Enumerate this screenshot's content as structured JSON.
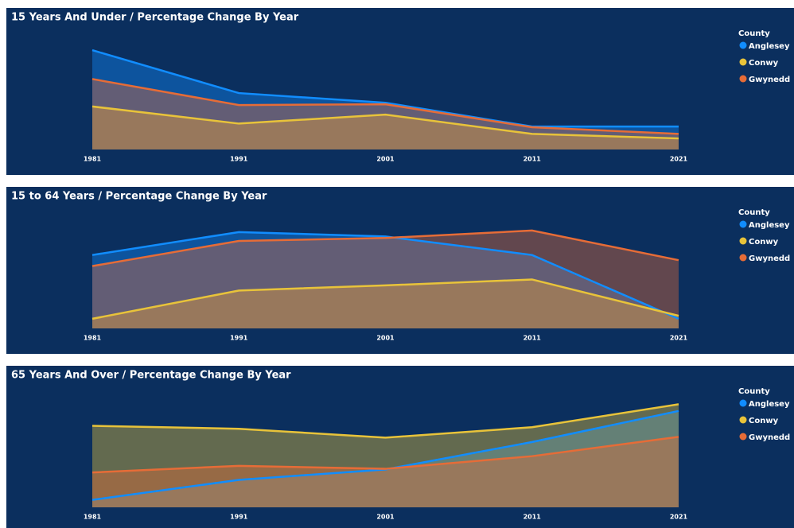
{
  "chart_data": [
    {
      "type": "area",
      "title": "15 Years And Under / Percentage Change By Year",
      "legend_title": "County",
      "categories": [
        "1981",
        "1991",
        "2001",
        "2011",
        "2021"
      ],
      "ylim": [
        0,
        100
      ],
      "series": [
        {
          "name": "Anglesey",
          "color": "#118dff",
          "values": [
            90.5,
            51.4,
            42.6,
            20.9,
            20.9
          ]
        },
        {
          "name": "Conwy",
          "color": "#e8c33a",
          "values": [
            39.2,
            23.6,
            31.8,
            14.2,
            10.1
          ]
        },
        {
          "name": "Gwynedd",
          "color": "#e66c37",
          "values": [
            64.2,
            40.5,
            41.2,
            20.3,
            14.2
          ]
        }
      ]
    },
    {
      "type": "area",
      "title": "15 to 64 Years / Percentage Change By Year",
      "legend_title": "County",
      "categories": [
        "1981",
        "1991",
        "2001",
        "2011",
        "2021"
      ],
      "ylim": [
        0,
        100
      ],
      "series": [
        {
          "name": "Anglesey",
          "color": "#118dff",
          "values": [
            66.9,
            87.8,
            83.8,
            66.9,
            8.8
          ]
        },
        {
          "name": "Conwy",
          "color": "#e8c33a",
          "values": [
            8.8,
            34.5,
            39.2,
            44.6,
            11.5
          ]
        },
        {
          "name": "Gwynedd",
          "color": "#e66c37",
          "values": [
            56.8,
            79.7,
            82.4,
            89.2,
            62.2
          ]
        }
      ]
    },
    {
      "type": "area",
      "title": "65 Years And Over / Percentage Change By Year",
      "legend_title": "County",
      "categories": [
        "1981",
        "1991",
        "2001",
        "2011",
        "2021"
      ],
      "ylim": [
        0,
        100
      ],
      "series": [
        {
          "name": "Anglesey",
          "color": "#118dff",
          "values": [
            6.8,
            25,
            34.5,
            59.5,
            87.8
          ]
        },
        {
          "name": "Conwy",
          "color": "#e8c33a",
          "values": [
            74.3,
            71.6,
            63.5,
            73,
            93.9
          ]
        },
        {
          "name": "Gwynedd",
          "color": "#e66c37",
          "values": [
            31.8,
            37.8,
            35.1,
            46.6,
            64.2
          ]
        }
      ]
    }
  ]
}
